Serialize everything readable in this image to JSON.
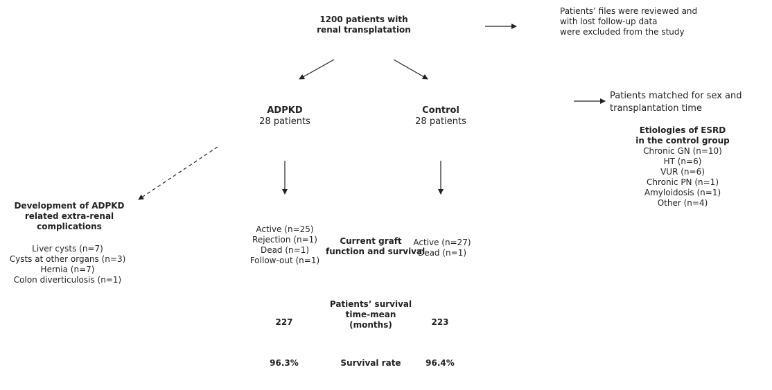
{
  "top": {
    "line1": "1200 patients with",
    "line2": "renal transplatation"
  },
  "excluded": {
    "line1": "Patients’ files were reviewed and",
    "line2": "with lost follow-up data",
    "line3": "were excluded from the study"
  },
  "adpkd": {
    "title": "ADPKD",
    "count": "28 patients"
  },
  "control": {
    "title": "Control",
    "count": "28 patients"
  },
  "matched": {
    "line1": "Patients matched for sex and",
    "line2": "transplantation time"
  },
  "etiologies": {
    "title1": "Etiologies of ESRD",
    "title2": "in the control group",
    "items": [
      "Chronic GN (n=10)",
      "HT (n=6)",
      "VUR (n=6)",
      "Chronic PN (n=1)",
      "Amyloidosis (n=1)",
      "Other (n=4)"
    ]
  },
  "complications": {
    "title1": "Development of ADPKD",
    "title2": "related extra-renal",
    "title3": "complications",
    "items": [
      "Liver cysts (n=7)",
      "Cysts at other organs  (n=3)",
      "Hernia (n=7)",
      "Colon diverticulosis (n=1)"
    ]
  },
  "graft": {
    "label1": "Current graft",
    "label2": "function and survival",
    "adpkd_items": [
      "Active (n=25)",
      "Rejection (n=1)",
      "Dead (n=1)",
      "Follow-out (n=1)"
    ],
    "control_items": [
      "Active (n=27)",
      "Dead (n=1)"
    ]
  },
  "survival_time": {
    "label1": "Patients’ survival",
    "label2": "time-mean",
    "label3": "(months)",
    "adpkd": "227",
    "control": "223"
  },
  "survival_rate": {
    "label": "Survival rate",
    "adpkd": "96.3%",
    "control": "96.4%"
  }
}
